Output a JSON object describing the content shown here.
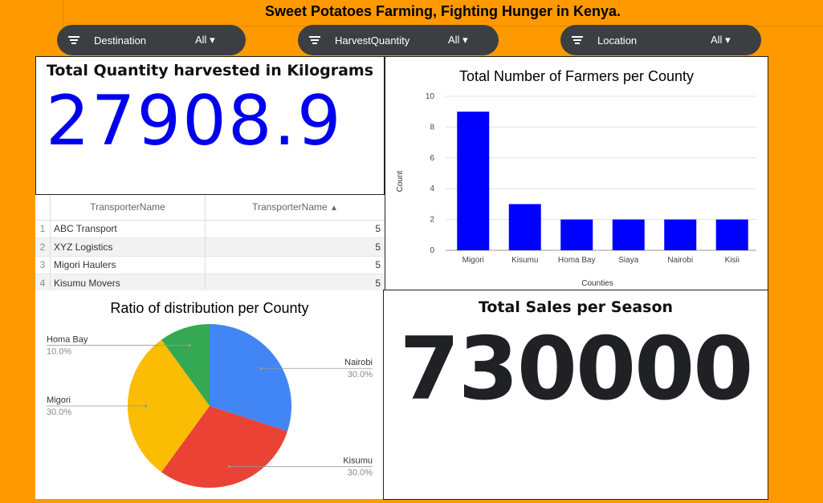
{
  "page": {
    "title": "Sweet Potatoes Farming, Fighting Hunger in Kenya."
  },
  "filters": [
    {
      "label": "Destination",
      "value": "All"
    },
    {
      "label": "HarvestQuantity",
      "value": "All"
    },
    {
      "label": "Location",
      "value": "All"
    }
  ],
  "kpi_quantity": {
    "title": "Total Quantity harvested in Kilograms",
    "value": "27908.9",
    "color": "#0000ee"
  },
  "kpi_sales": {
    "title": "Total Sales per Season",
    "value": "730000",
    "color": "#202124"
  },
  "transporter_table": {
    "headers": [
      "TransporterName",
      "TransporterName"
    ],
    "sort_indicator": "▲",
    "rows": [
      {
        "index": "1",
        "name": "ABC Transport",
        "count": "5"
      },
      {
        "index": "2",
        "name": "XYZ Logistics",
        "count": "5"
      },
      {
        "index": "3",
        "name": "Migori Haulers",
        "count": "5"
      },
      {
        "index": "4",
        "name": "Kisumu Movers",
        "count": "5"
      }
    ]
  },
  "chart_data": [
    {
      "type": "bar",
      "title": "Total Number of Farmers per County",
      "xlabel": "Counties",
      "ylabel": "Count",
      "categories": [
        "Migori",
        "Kisumu",
        "Homa Bay",
        "Siaya",
        "Nairobi",
        "Kisii"
      ],
      "values": [
        9,
        3,
        2,
        2,
        2,
        2
      ],
      "ylim": [
        0,
        10
      ],
      "yticks": [
        0,
        2,
        4,
        6,
        8,
        10
      ],
      "grid": true,
      "color": "#0000ff"
    },
    {
      "type": "pie",
      "title": "Ratio of distribution per County",
      "slices": [
        {
          "label": "Nairobi",
          "value": 30.0,
          "pct": "30.0%",
          "color": "#4285f4"
        },
        {
          "label": "Kisumu",
          "value": 30.0,
          "pct": "30.0%",
          "color": "#ea4335"
        },
        {
          "label": "Migori",
          "value": 30.0,
          "pct": "30.0%",
          "color": "#fbbc04"
        },
        {
          "label": "Homa Bay",
          "value": 10.0,
          "pct": "10.0%",
          "color": "#34a853"
        }
      ]
    }
  ]
}
